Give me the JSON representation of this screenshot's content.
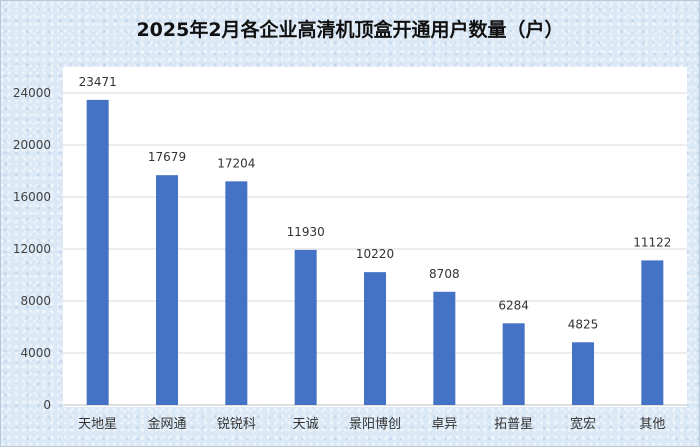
{
  "chart_data": {
    "type": "bar",
    "title": "2025年2月各企业高清机顶盒开通用户数量（户）",
    "categories": [
      "天地星",
      "金网通",
      "锐锐科",
      "天诚",
      "景阳博创",
      "卓异",
      "拓普星",
      "宽宏",
      "其他"
    ],
    "values": [
      23471,
      17679,
      17204,
      11930,
      10220,
      8708,
      6284,
      4825,
      11122
    ],
    "yticks": [
      0,
      4000,
      8000,
      12000,
      16000,
      20000,
      24000
    ],
    "ylim": [
      0,
      26000
    ],
    "xlabel": "",
    "ylabel": "",
    "grid": true,
    "legend": "none",
    "bar_color": "#4472c4"
  }
}
